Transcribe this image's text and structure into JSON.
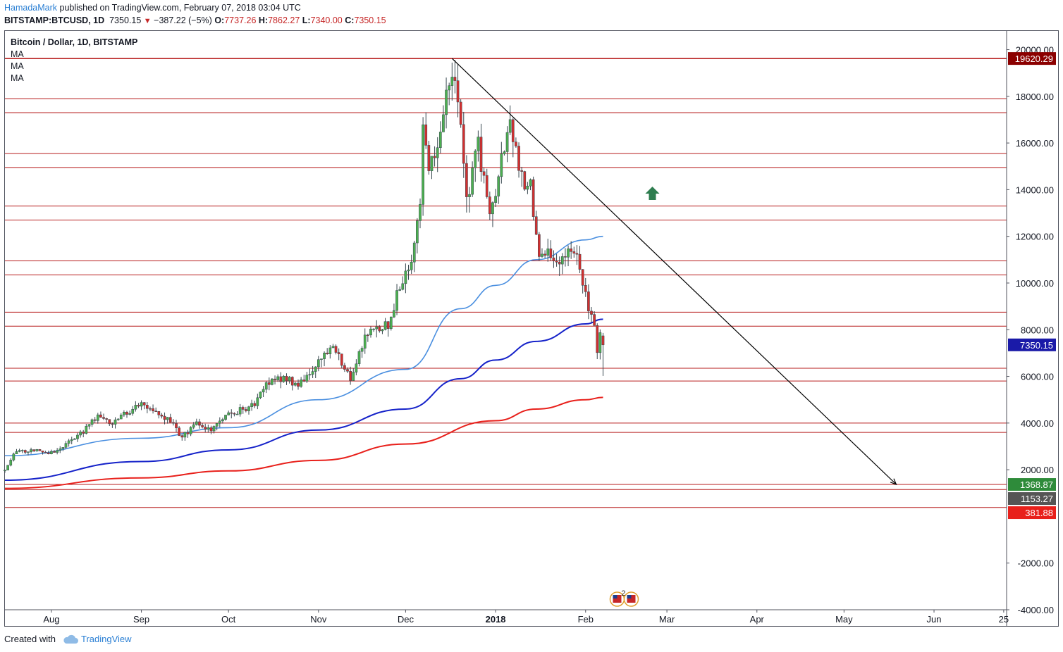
{
  "header": {
    "author": "HamadaMark",
    "published_text": " published on TradingView.com, February 07, 2018 03:04 UTC",
    "symbol": "BITSTAMP:BTCUSD, 1D",
    "last": "7350.15",
    "change": "−387.22 (−5%)",
    "open_label": "O:",
    "open": "7737.26",
    "high_label": "H:",
    "high": "7862.27",
    "low_label": "L:",
    "low": "7340.00",
    "close_label": "C:",
    "close": "7350.15"
  },
  "legend": {
    "title": "Bitcoin / Dollar, 1D, BITSTAMP",
    "indicators": [
      "MA",
      "MA",
      "MA"
    ]
  },
  "footer": {
    "created_with": "Created with",
    "brand": "TradingView"
  },
  "colors": {
    "up_candle": "#4caf50",
    "down_candle": "#d32f2f",
    "wick": "#37474f",
    "hline": "#b71c1c",
    "ma_fast": "#4a8fe0",
    "ma_mid": "#1522c9",
    "ma_slow": "#e8201b",
    "trendline": "#000000",
    "arrow_up": "#2e7d4f"
  },
  "chart_data": {
    "type": "candlestick",
    "title": "Bitcoin / Dollar, 1D, BITSTAMP",
    "ylim": [
      -4000,
      20800
    ],
    "y_ticks": [
      -4000,
      -2000,
      0,
      2000,
      4000,
      6000,
      8000,
      10000,
      12000,
      14000,
      16000,
      18000,
      20000
    ],
    "y_tick_labels": [
      "-4000.00",
      "-2000.00",
      "",
      "2000.00",
      "4000.00",
      "6000.00",
      "8000.00",
      "10000.00",
      "12000.00",
      "14000.00",
      "16000.00",
      "18000.00",
      "20000.00"
    ],
    "x_start": "2017-07-16",
    "x_end": "2018-06-26",
    "x_ticks": [
      {
        "date": "2017-08-01",
        "label": "Aug",
        "bold": false
      },
      {
        "date": "2017-09-01",
        "label": "Sep",
        "bold": false
      },
      {
        "date": "2017-10-01",
        "label": "Oct",
        "bold": false
      },
      {
        "date": "2017-11-01",
        "label": "Nov",
        "bold": false
      },
      {
        "date": "2017-12-01",
        "label": "Dec",
        "bold": false
      },
      {
        "date": "2018-01-01",
        "label": "2018",
        "bold": true
      },
      {
        "date": "2018-02-01",
        "label": "Feb",
        "bold": false
      },
      {
        "date": "2018-03-01",
        "label": "Mar",
        "bold": false
      },
      {
        "date": "2018-04-01",
        "label": "Apr",
        "bold": false
      },
      {
        "date": "2018-05-01",
        "label": "May",
        "bold": false
      },
      {
        "date": "2018-06-01",
        "label": "Jun",
        "bold": false
      },
      {
        "date": "2018-06-25",
        "label": "25",
        "bold": false
      }
    ],
    "horizontal_levels": [
      19620,
      17900,
      17300,
      15550,
      14950,
      13300,
      12700,
      10950,
      10350,
      8750,
      8150,
      6350,
      5800,
      4000,
      3600,
      1369,
      1153,
      382
    ],
    "price_badges": [
      {
        "label": "19620.29",
        "value": 19620.29,
        "color": "#8b0000"
      },
      {
        "label": "7350.15",
        "value": 7350.15,
        "color": "#1a1aa8"
      },
      {
        "label": "1368.87",
        "value": 1368.87,
        "color": "#2e8b3a"
      },
      {
        "label": "1153.27",
        "value": 1153.27,
        "color": "#555555"
      },
      {
        "label": "381.88",
        "value": 381.88,
        "color": "#e8201b"
      }
    ],
    "ohlc_anchor_closes": [
      {
        "date": "2017-07-16",
        "close": 1950
      },
      {
        "date": "2017-07-20",
        "close": 2850
      },
      {
        "date": "2017-08-01",
        "close": 2750
      },
      {
        "date": "2017-08-10",
        "close": 3400
      },
      {
        "date": "2017-08-17",
        "close": 4300
      },
      {
        "date": "2017-08-22",
        "close": 4000
      },
      {
        "date": "2017-09-01",
        "close": 4900
      },
      {
        "date": "2017-09-05",
        "close": 4450
      },
      {
        "date": "2017-09-10",
        "close": 4200
      },
      {
        "date": "2017-09-15",
        "close": 3400
      },
      {
        "date": "2017-09-20",
        "close": 3950
      },
      {
        "date": "2017-09-25",
        "close": 3700
      },
      {
        "date": "2017-10-01",
        "close": 4350
      },
      {
        "date": "2017-10-10",
        "close": 4800
      },
      {
        "date": "2017-10-14",
        "close": 5700
      },
      {
        "date": "2017-10-20",
        "close": 5950
      },
      {
        "date": "2017-10-25",
        "close": 5600
      },
      {
        "date": "2017-11-01",
        "close": 6650
      },
      {
        "date": "2017-11-07",
        "close": 7200
      },
      {
        "date": "2017-11-10",
        "close": 6400
      },
      {
        "date": "2017-11-12",
        "close": 5850
      },
      {
        "date": "2017-11-17",
        "close": 7800
      },
      {
        "date": "2017-11-25",
        "close": 8200
      },
      {
        "date": "2017-11-29",
        "close": 9900
      },
      {
        "date": "2017-12-04",
        "close": 11500
      },
      {
        "date": "2017-12-06",
        "close": 13500
      },
      {
        "date": "2017-12-07",
        "close": 16500
      },
      {
        "date": "2017-12-09",
        "close": 14800
      },
      {
        "date": "2017-12-13",
        "close": 16500
      },
      {
        "date": "2017-12-17",
        "close": 19400
      },
      {
        "date": "2017-12-20",
        "close": 16600
      },
      {
        "date": "2017-12-22",
        "close": 13500
      },
      {
        "date": "2017-12-26",
        "close": 15800
      },
      {
        "date": "2017-12-30",
        "close": 12900
      },
      {
        "date": "2018-01-03",
        "close": 15200
      },
      {
        "date": "2018-01-06",
        "close": 17100
      },
      {
        "date": "2018-01-10",
        "close": 14500
      },
      {
        "date": "2018-01-13",
        "close": 14100
      },
      {
        "date": "2018-01-16",
        "close": 11300
      },
      {
        "date": "2018-01-19",
        "close": 11600
      },
      {
        "date": "2018-01-22",
        "close": 10900
      },
      {
        "date": "2018-01-25",
        "close": 11200
      },
      {
        "date": "2018-01-29",
        "close": 11100
      },
      {
        "date": "2018-01-31",
        "close": 10000
      },
      {
        "date": "2018-02-02",
        "close": 8900
      },
      {
        "date": "2018-02-04",
        "close": 8200
      },
      {
        "date": "2018-02-05",
        "close": 6900
      },
      {
        "date": "2018-02-06",
        "close": 7737
      },
      {
        "date": "2018-02-07",
        "close": 7350
      }
    ],
    "last_candle": {
      "date": "2018-02-07",
      "open": 7737.26,
      "high": 7862.27,
      "low": 7340.0,
      "close": 7350.15
    },
    "moving_averages": [
      {
        "color": "#4a8fe0",
        "points": [
          [
            "2017-07-16",
            2600
          ],
          [
            "2017-09-01",
            3350
          ],
          [
            "2017-10-01",
            3800
          ],
          [
            "2017-11-01",
            5000
          ],
          [
            "2017-12-01",
            6300
          ],
          [
            "2017-12-20",
            8900
          ],
          [
            "2018-01-01",
            9900
          ],
          [
            "2018-01-15",
            11000
          ],
          [
            "2018-02-01",
            11850
          ],
          [
            "2018-02-07",
            12000
          ]
        ]
      },
      {
        "color": "#1522c9",
        "points": [
          [
            "2017-07-16",
            1550
          ],
          [
            "2017-09-01",
            2350
          ],
          [
            "2017-10-01",
            2850
          ],
          [
            "2017-11-01",
            3700
          ],
          [
            "2017-12-01",
            4600
          ],
          [
            "2017-12-20",
            5900
          ],
          [
            "2018-01-01",
            6700
          ],
          [
            "2018-01-15",
            7500
          ],
          [
            "2018-02-01",
            8250
          ],
          [
            "2018-02-07",
            8450
          ]
        ]
      },
      {
        "color": "#e8201b",
        "points": [
          [
            "2017-07-16",
            1200
          ],
          [
            "2017-09-01",
            1650
          ],
          [
            "2017-10-01",
            1950
          ],
          [
            "2017-11-01",
            2400
          ],
          [
            "2017-12-01",
            3100
          ],
          [
            "2018-01-01",
            4100
          ],
          [
            "2018-01-15",
            4600
          ],
          [
            "2018-02-01",
            5000
          ],
          [
            "2018-02-07",
            5100
          ]
        ]
      }
    ],
    "trendline": {
      "from": [
        "2017-12-17",
        19620
      ],
      "to": [
        "2018-05-19",
        1369
      ]
    },
    "arrow_up": {
      "date": "2018-02-24",
      "value": 13800
    },
    "event_marker": {
      "date": "2018-02-07",
      "label": "2"
    }
  }
}
